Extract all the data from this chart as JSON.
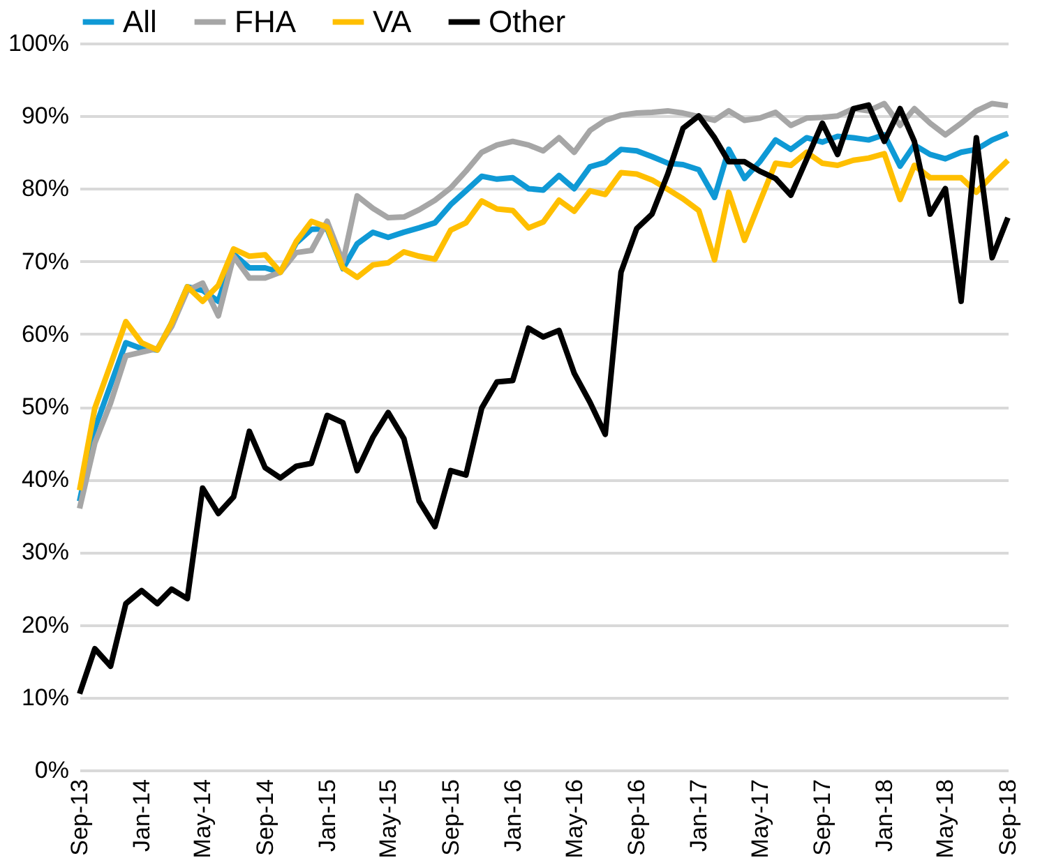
{
  "chart_data": {
    "type": "line",
    "x": [
      "2013-09",
      "2013-10",
      "2013-11",
      "2013-12",
      "2014-01",
      "2014-02",
      "2014-03",
      "2014-04",
      "2014-05",
      "2014-06",
      "2014-07",
      "2014-08",
      "2014-09",
      "2014-10",
      "2014-11",
      "2014-12",
      "2015-01",
      "2015-02",
      "2015-03",
      "2015-04",
      "2015-05",
      "2015-06",
      "2015-07",
      "2015-08",
      "2015-09",
      "2015-10",
      "2015-11",
      "2015-12",
      "2016-01",
      "2016-02",
      "2016-03",
      "2016-04",
      "2016-05",
      "2016-06",
      "2016-07",
      "2016-08",
      "2016-09",
      "2016-10",
      "2016-11",
      "2016-12",
      "2017-01",
      "2017-02",
      "2017-03",
      "2017-04",
      "2017-05",
      "2017-06",
      "2017-07",
      "2017-08",
      "2017-09",
      "2017-10",
      "2017-11",
      "2017-12",
      "2018-01",
      "2018-02",
      "2018-03",
      "2018-04",
      "2018-05",
      "2018-06",
      "2018-07",
      "2018-08",
      "2018-09"
    ],
    "xlim": [
      "2013-09",
      "2018-09"
    ],
    "xticks": [
      {
        "value": "2013-09",
        "label": "Sep-13"
      },
      {
        "value": "2014-01",
        "label": "Jan-14"
      },
      {
        "value": "2014-05",
        "label": "May-14"
      },
      {
        "value": "2014-09",
        "label": "Sep-14"
      },
      {
        "value": "2015-01",
        "label": "Jan-15"
      },
      {
        "value": "2015-05",
        "label": "May-15"
      },
      {
        "value": "2015-09",
        "label": "Sep-15"
      },
      {
        "value": "2016-01",
        "label": "Jan-16"
      },
      {
        "value": "2016-05",
        "label": "May-16"
      },
      {
        "value": "2016-09",
        "label": "Sep-16"
      },
      {
        "value": "2017-01",
        "label": "Jan-17"
      },
      {
        "value": "2017-05",
        "label": "May-17"
      },
      {
        "value": "2017-09",
        "label": "Sep-17"
      },
      {
        "value": "2018-01",
        "label": "Jan-18"
      },
      {
        "value": "2018-05",
        "label": "May-18"
      },
      {
        "value": "2018-09",
        "label": "Sep-18"
      }
    ],
    "ylim": [
      0,
      100
    ],
    "yticks": [
      {
        "value": 0,
        "label": "0%"
      },
      {
        "value": 10,
        "label": "10%"
      },
      {
        "value": 20,
        "label": "20%"
      },
      {
        "value": 30,
        "label": "30%"
      },
      {
        "value": 40,
        "label": "40%"
      },
      {
        "value": 50,
        "label": "50%"
      },
      {
        "value": 60,
        "label": "60%"
      },
      {
        "value": 70,
        "label": "70%"
      },
      {
        "value": 80,
        "label": "80%"
      },
      {
        "value": 90,
        "label": "90%"
      },
      {
        "value": 100,
        "label": "100%"
      }
    ],
    "grid": "y",
    "legend": "top",
    "marker": "none",
    "line_style": "solid",
    "series": [
      {
        "name": "All",
        "color": "#0f99d5",
        "values": [
          37,
          47,
          53,
          58.8,
          58,
          57.8,
          61.5,
          66.5,
          66,
          64.5,
          71,
          69.1,
          69.1,
          68.5,
          72.5,
          74.4,
          74.5,
          69,
          72.4,
          74,
          73.3,
          74,
          74.6,
          75.3,
          77.8,
          79.7,
          81.7,
          81.3,
          81.5,
          80,
          79.8,
          81.8,
          80,
          83,
          83.6,
          85.4,
          85.2,
          84.4,
          83.5,
          83.3,
          82.6,
          78.8,
          85.4,
          81.4,
          83.7,
          86.7,
          85.4,
          87,
          86.4,
          87.2,
          87,
          86.7,
          87.4,
          83.1,
          86,
          84.7,
          84.1,
          85,
          85.4,
          86.7,
          87.6
        ]
      },
      {
        "name": "FHA",
        "color": "#a6a6a6",
        "values": [
          36,
          45,
          50.5,
          57,
          57.5,
          58,
          61,
          66,
          67,
          62.5,
          70.7,
          67.7,
          67.7,
          68.5,
          71.2,
          71.5,
          75.5,
          69.9,
          79,
          77.3,
          76,
          76.1,
          77.1,
          78.4,
          80.1,
          82.4,
          85,
          86,
          86.5,
          86,
          85.2,
          87,
          85,
          88,
          89.4,
          90.1,
          90.4,
          90.5,
          90.7,
          90.4,
          89.9,
          89.4,
          90.7,
          89.4,
          89.7,
          90.5,
          88.7,
          89.7,
          89.8,
          90,
          91,
          90.7,
          91.7,
          88.7,
          91,
          89,
          87.4,
          89,
          90.7,
          91.7,
          91.4
        ]
      },
      {
        "name": "VA",
        "color": "#ffbf00",
        "values": [
          38.5,
          49.8,
          55.8,
          61.7,
          58.8,
          57.8,
          61.5,
          66.5,
          64.5,
          66.7,
          71.7,
          70.7,
          70.9,
          68.5,
          72.7,
          75.5,
          74.7,
          69.1,
          67.8,
          69.5,
          69.8,
          71.3,
          70.7,
          70.3,
          74.3,
          75.3,
          78.3,
          77.2,
          77,
          74.6,
          75.4,
          78.4,
          76.9,
          79.7,
          79.2,
          82.2,
          82,
          81.2,
          79.9,
          78.6,
          77,
          70.2,
          79.5,
          72.9,
          78.2,
          83.5,
          83.2,
          85,
          83.5,
          83.2,
          83.9,
          84.2,
          84.8,
          78.5,
          83.2,
          81.5,
          81.5,
          81.5,
          79.5,
          81.8,
          83.9
        ]
      },
      {
        "name": "Other",
        "color": "#000000",
        "values": [
          10.5,
          16.7,
          14.3,
          22.9,
          24.7,
          22.9,
          24.9,
          23.6,
          38.8,
          35.3,
          37.6,
          46.6,
          41.6,
          40.2,
          41.8,
          42.2,
          48.8,
          47.8,
          41.2,
          45.8,
          49.2,
          45.6,
          37,
          33.5,
          41.2,
          40.6,
          49.8,
          53.4,
          53.6,
          60.8,
          59.6,
          60.5,
          54.6,
          50.6,
          46.2,
          68.5,
          74.5,
          76.5,
          82,
          88.3,
          90,
          87,
          83.7,
          83.7,
          82.4,
          81.4,
          79.1,
          84,
          89,
          84.7,
          91,
          91.5,
          86.5,
          91,
          86.5,
          76.5,
          80,
          64.5,
          87,
          70.5,
          76
        ]
      }
    ]
  }
}
